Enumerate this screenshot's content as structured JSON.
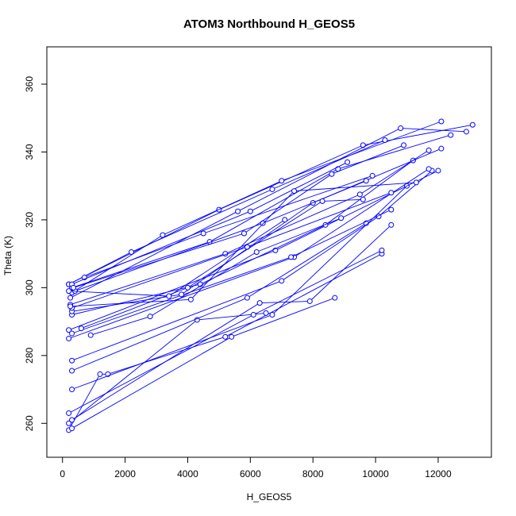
{
  "chart_data": {
    "type": "scatter",
    "title": "ATOM3 Northbound H_GEOS5",
    "xlabel": "H_GEOS5",
    "ylabel": "Theta (K)",
    "xlim": [
      -500,
      13700
    ],
    "ylim": [
      250,
      371
    ],
    "xticks": [
      0,
      2000,
      4000,
      6000,
      8000,
      10000,
      12000
    ],
    "yticks": [
      260,
      280,
      300,
      320,
      340,
      360
    ],
    "grid": false,
    "legend": "none",
    "series_color": "#0000ff",
    "series": [
      {
        "x": [
          200,
          1200,
          1450,
          5200,
          10200
        ],
        "y": [
          258,
          274.5,
          274.5,
          285.5,
          310
        ]
      },
      {
        "x": [
          300,
          5400,
          8700
        ],
        "y": [
          258.5,
          285.5,
          297
        ]
      },
      {
        "x": [
          200,
          4300,
          6500
        ],
        "y": [
          260,
          290.5,
          292.5
        ]
      },
      {
        "x": [
          300,
          6300,
          7900,
          10500
        ],
        "y": [
          261,
          295.5,
          296,
          318.5
        ]
      },
      {
        "x": [
          200,
          6100,
          10200
        ],
        "y": [
          263,
          292,
          311
        ]
      },
      {
        "x": [
          300,
          6700,
          11000
        ],
        "y": [
          270,
          292,
          330
        ]
      },
      {
        "x": [
          300,
          5900,
          9700
        ],
        "y": [
          275.5,
          297,
          319
        ]
      },
      {
        "x": [
          300,
          7000,
          10100,
          11800
        ],
        "y": [
          278.5,
          302,
          321,
          334.5
        ]
      },
      {
        "x": [
          200,
          7400,
          11700
        ],
        "y": [
          285,
          309,
          335
        ]
      },
      {
        "x": [
          200,
          6800,
          12000
        ],
        "y": [
          287.5,
          311,
          334.5
        ]
      },
      {
        "x": [
          300,
          7300,
          10500
        ],
        "y": [
          286.5,
          309,
          323
        ]
      },
      {
        "x": [
          300,
          4400,
          8400,
          11200
        ],
        "y": [
          292,
          301,
          318.5,
          337.5
        ]
      },
      {
        "x": [
          300,
          3800,
          8000,
          12100
        ],
        "y": [
          293,
          298,
          325,
          341
        ]
      },
      {
        "x": [
          250,
          5200,
          9500,
          11700
        ],
        "y": [
          295,
          310,
          327.5,
          340.5
        ]
      },
      {
        "x": [
          300,
          4700,
          8800,
          12400
        ],
        "y": [
          300,
          313.5,
          335,
          345
        ]
      },
      {
        "x": [
          200,
          5000,
          9600,
          13100
        ],
        "y": [
          301,
          323,
          342,
          348
        ]
      },
      {
        "x": [
          250,
          5600,
          10800,
          12900
        ],
        "y": [
          297,
          322.5,
          347,
          346
        ]
      },
      {
        "x": [
          300,
          3200,
          7000,
          12100
        ],
        "y": [
          298.5,
          315.5,
          331.5,
          349
        ]
      },
      {
        "x": [
          200,
          2200,
          6700,
          10300
        ],
        "y": [
          301,
          310.5,
          329,
          343.5
        ]
      },
      {
        "x": [
          300,
          5900,
          10500
        ],
        "y": [
          294,
          312,
          328
        ]
      },
      {
        "x": [
          400,
          6400,
          9700
        ],
        "y": [
          299,
          319,
          331.5
        ]
      },
      {
        "x": [
          900,
          2800,
          6200,
          8900
        ],
        "y": [
          286,
          291.5,
          310.5,
          320.5
        ]
      },
      {
        "x": [
          600,
          4000,
          8300,
          9600
        ],
        "y": [
          288,
          300,
          325.5,
          326
        ]
      },
      {
        "x": [
          700,
          4500,
          9900
        ],
        "y": [
          303,
          316,
          333
        ]
      },
      {
        "x": [
          200,
          3400,
          7100
        ],
        "y": [
          299,
          297.5,
          320
        ]
      },
      {
        "x": [
          300,
          6000,
          9100
        ],
        "y": [
          301,
          322.5,
          337
        ]
      },
      {
        "x": [
          250,
          4100,
          7400,
          11300
        ],
        "y": [
          294.5,
          296.5,
          328.5,
          331
        ]
      },
      {
        "x": [
          350,
          5800,
          8600,
          10900
        ],
        "y": [
          300,
          316,
          333.5,
          342
        ]
      }
    ]
  }
}
